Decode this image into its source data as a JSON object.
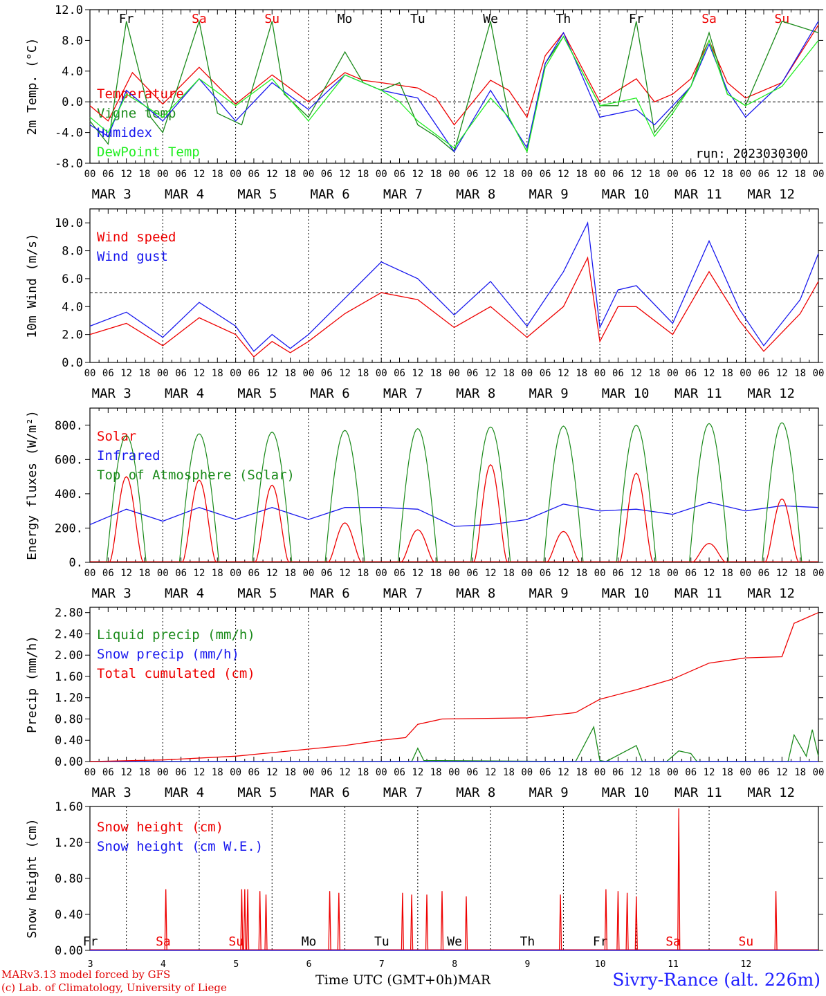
{
  "footer": {
    "model_line": "MARv3.13 model forced by GFS",
    "credit_line": "(c) Lab. of Climatology, University of Liege",
    "x_axis_title": "Time UTC (GMT+0h)",
    "month": "MAR",
    "station": "Sivry-Rance (alt. 226m)"
  },
  "colors": {
    "red": "#ee0000",
    "blue": "#1818ee",
    "green": "#1a8a1a",
    "lightgreen": "#22ee22",
    "black": "#000000"
  },
  "chart_data": [
    {
      "type": "line",
      "ylabel": "2m Temp. (°C)",
      "ylim": [
        -8,
        12
      ],
      "yticks": [
        "-8.0",
        "-4.0",
        "0.0",
        "4.0",
        "8.0",
        "12.0"
      ],
      "reference_line": 0,
      "day_labels": [
        "Fr",
        "Sa",
        "Su",
        "Mo",
        "Tu",
        "We",
        "Th",
        "Fr",
        "Sa",
        "Su"
      ],
      "day_labels_weekend": [
        false,
        true,
        true,
        false,
        false,
        false,
        false,
        false,
        true,
        true
      ],
      "date_labels": [
        "MAR 3",
        "MAR 4",
        "MAR 5",
        "MAR 6",
        "MAR 7",
        "MAR 8",
        "MAR 9",
        "MAR 10",
        "MAR 11",
        "MAR 12"
      ],
      "hour_ticks": [
        "00",
        "06",
        "12",
        "18"
      ],
      "annotation": "run: 2023030300",
      "x_unit": "hours since 2023-03-03 00 UTC",
      "series": [
        {
          "name": "Temperature",
          "color": "red",
          "x": [
            0,
            6,
            14,
            24,
            36,
            48,
            60,
            72,
            84,
            90,
            96,
            108,
            114,
            120,
            132,
            138,
            144,
            150,
            156,
            168,
            180,
            186,
            192,
            198,
            204,
            210,
            216,
            228,
            240
          ],
          "y": [
            -0.5,
            -2.5,
            3.8,
            -0.3,
            4.5,
            -0.3,
            3.5,
            0.0,
            3.8,
            2.8,
            2.5,
            1.8,
            0.5,
            -3.0,
            2.8,
            1.5,
            -2.0,
            6.0,
            9.0,
            0.0,
            3.0,
            0.0,
            1.0,
            3.0,
            8.0,
            2.5,
            0.5,
            2.5,
            10.0
          ]
        },
        {
          "name": "Vigne temp",
          "color": "green",
          "x": [
            0,
            6,
            12,
            20,
            24,
            36,
            42,
            50,
            60,
            64,
            72,
            84,
            90,
            96,
            102,
            108,
            114,
            120,
            132,
            138,
            144,
            150,
            156,
            168,
            174,
            180,
            186,
            192,
            198,
            204,
            210,
            216,
            228,
            240
          ],
          "y": [
            -2.5,
            -5.5,
            10.5,
            -2.0,
            -4.0,
            10.5,
            -1.5,
            -3.0,
            10.5,
            1.0,
            -2.0,
            6.5,
            2.5,
            1.5,
            2.5,
            -3.0,
            -4.5,
            -6.5,
            10.5,
            -2.0,
            -6.5,
            5.0,
            8.5,
            -0.5,
            -0.5,
            10.5,
            -4.0,
            -1.0,
            2.0,
            9.0,
            1.0,
            -0.5,
            10.5,
            9.0
          ]
        },
        {
          "name": "Humidex",
          "color": "blue",
          "x": [
            0,
            6,
            12,
            24,
            36,
            48,
            60,
            72,
            84,
            96,
            108,
            120,
            132,
            144,
            150,
            156,
            168,
            180,
            186,
            192,
            198,
            204,
            210,
            216,
            228,
            240
          ],
          "y": [
            -3.0,
            -4.5,
            1.5,
            -2.5,
            3.0,
            -2.5,
            2.5,
            -1.0,
            3.5,
            1.5,
            0.5,
            -6.5,
            1.5,
            -6.0,
            5.0,
            9.0,
            -2.0,
            -1.0,
            -3.0,
            -0.5,
            2.0,
            7.5,
            1.5,
            -2.0,
            2.5,
            10.5
          ]
        },
        {
          "name": "DewPoint Temp",
          "color": "lightgreen",
          "x": [
            0,
            6,
            12,
            24,
            36,
            48,
            60,
            72,
            84,
            96,
            102,
            108,
            120,
            132,
            138,
            144,
            150,
            156,
            168,
            180,
            186,
            192,
            198,
            204,
            210,
            216,
            228,
            240
          ],
          "y": [
            -2.0,
            -4.0,
            1.0,
            -2.0,
            3.0,
            -0.5,
            3.0,
            -2.5,
            3.5,
            1.5,
            0.0,
            -2.5,
            -6.0,
            0.5,
            -2.0,
            -6.5,
            4.5,
            8.5,
            -0.5,
            0.5,
            -4.5,
            -1.5,
            2.0,
            8.0,
            1.0,
            -0.5,
            2.0,
            8.0
          ]
        }
      ]
    },
    {
      "type": "line",
      "ylabel": "10m Wind (m/s)",
      "ylim": [
        0,
        11
      ],
      "yticks": [
        "0.0",
        "2.0",
        "4.0",
        "6.0",
        "8.0",
        "10.0"
      ],
      "reference_line": 5,
      "date_labels": [
        "MAR 3",
        "MAR 4",
        "MAR 5",
        "MAR 6",
        "MAR 7",
        "MAR 8",
        "MAR 9",
        "MAR 10",
        "MAR 11",
        "MAR 12"
      ],
      "hour_ticks": [
        "00",
        "06",
        "12",
        "18"
      ],
      "series": [
        {
          "name": "Wind speed",
          "color": "red",
          "x": [
            0,
            12,
            24,
            36,
            48,
            54,
            60,
            66,
            72,
            84,
            96,
            108,
            120,
            132,
            144,
            156,
            164,
            168,
            174,
            180,
            192,
            204,
            214,
            222,
            234,
            240
          ],
          "y": [
            2.0,
            2.8,
            1.2,
            3.2,
            2.0,
            0.4,
            1.5,
            0.7,
            1.5,
            3.5,
            5.0,
            4.5,
            2.5,
            4.0,
            1.8,
            4.0,
            7.5,
            1.5,
            4.0,
            4.0,
            2.0,
            6.5,
            3.0,
            0.8,
            3.5,
            5.8
          ]
        },
        {
          "name": "Wind gust",
          "color": "blue",
          "x": [
            0,
            12,
            24,
            36,
            48,
            54,
            60,
            66,
            72,
            84,
            96,
            108,
            120,
            132,
            144,
            156,
            164,
            168,
            174,
            180,
            192,
            204,
            214,
            222,
            234,
            240
          ],
          "y": [
            2.6,
            3.6,
            1.8,
            4.3,
            2.6,
            0.8,
            2.0,
            1.0,
            2.0,
            4.6,
            7.2,
            6.0,
            3.4,
            5.8,
            2.6,
            6.5,
            10.0,
            2.5,
            5.2,
            5.5,
            2.8,
            8.7,
            3.8,
            1.2,
            4.5,
            7.8
          ]
        }
      ]
    },
    {
      "type": "line",
      "ylabel": "Energy fluxes (W/m²)",
      "ylim": [
        0,
        900
      ],
      "yticks": [
        "0.",
        "200.",
        "400.",
        "600.",
        "800."
      ],
      "date_labels": [
        "MAR 3",
        "MAR 4",
        "MAR 5",
        "MAR 6",
        "MAR 7",
        "MAR 8",
        "MAR 9",
        "MAR 10",
        "MAR 11",
        "MAR 12"
      ],
      "hour_ticks": [
        "00",
        "06",
        "12",
        "18"
      ],
      "toa_solar_peaks": [
        740,
        750,
        760,
        770,
        780,
        790,
        795,
        800,
        810,
        815
      ],
      "solar_peaks": [
        500,
        480,
        450,
        230,
        190,
        570,
        180,
        520,
        110,
        370
      ],
      "series": [
        {
          "name": "Solar",
          "color": "red"
        },
        {
          "name": "Infrared",
          "color": "blue",
          "x": [
            0,
            12,
            24,
            36,
            48,
            60,
            72,
            84,
            96,
            108,
            120,
            132,
            144,
            156,
            168,
            180,
            192,
            204,
            216,
            228,
            240
          ],
          "y": [
            220,
            310,
            240,
            320,
            250,
            320,
            250,
            320,
            320,
            310,
            210,
            220,
            250,
            340,
            300,
            310,
            280,
            350,
            300,
            330,
            320
          ]
        },
        {
          "name": "Top of Atmosphere (Solar)",
          "color": "green"
        }
      ]
    },
    {
      "type": "line",
      "ylabel": "Precip (mm/h)",
      "ylim": [
        0,
        2.9
      ],
      "yticks": [
        "0.00",
        "0.40",
        "0.80",
        "1.20",
        "1.60",
        "2.00",
        "2.40",
        "2.80"
      ],
      "date_labels": [
        "MAR 3",
        "MAR 4",
        "MAR 5",
        "MAR 6",
        "MAR 7",
        "MAR 8",
        "MAR 9",
        "MAR 10",
        "MAR 11",
        "MAR 12"
      ],
      "hour_ticks": [
        "00",
        "06",
        "12",
        "18"
      ],
      "series": [
        {
          "name": "Liquid precip (mm/h)",
          "color": "green",
          "x": [
            0,
            106,
            108,
            110,
            160,
            166,
            168,
            170,
            180,
            182,
            190,
            194,
            198,
            200,
            230,
            232,
            236,
            238,
            240
          ],
          "y": [
            0,
            0,
            0.25,
            0.02,
            0,
            0.65,
            0.02,
            0.0,
            0.3,
            0.0,
            0.0,
            0.2,
            0.15,
            0.0,
            0.0,
            0.5,
            0.1,
            0.6,
            0.1
          ]
        },
        {
          "name": "Snow precip (mm/h)",
          "color": "blue",
          "x": [
            0,
            240
          ],
          "y": [
            0,
            0
          ]
        },
        {
          "name": "Total cumulated (cm)",
          "color": "red",
          "x": [
            0,
            24,
            48,
            66,
            84,
            96,
            104,
            108,
            116,
            144,
            160,
            168,
            180,
            192,
            204,
            216,
            228,
            232,
            240
          ],
          "y": [
            0.0,
            0.03,
            0.1,
            0.2,
            0.3,
            0.4,
            0.45,
            0.7,
            0.8,
            0.82,
            0.92,
            1.17,
            1.35,
            1.55,
            1.85,
            1.95,
            1.97,
            2.6,
            2.8
          ]
        }
      ]
    },
    {
      "type": "line",
      "ylabel": "Snow height (cm)",
      "ylim": [
        0,
        1.6
      ],
      "yticks": [
        "0.00",
        "0.40",
        "0.80",
        "1.20",
        "1.60"
      ],
      "day_labels": [
        "Fr",
        "Sa",
        "Su",
        "Mo",
        "Tu",
        "We",
        "Th",
        "Fr",
        "Sa",
        "Su"
      ],
      "day_labels_weekend": [
        false,
        true,
        true,
        false,
        false,
        false,
        false,
        false,
        true,
        true
      ],
      "date_numbers": [
        "3",
        "4",
        "5",
        "6",
        "7",
        "8",
        "9",
        "10",
        "11",
        "12"
      ],
      "series": [
        {
          "name": "Snow height (cm)",
          "color": "red",
          "spikes": [
            [
              25,
              0.68
            ],
            [
              50,
              0.68
            ],
            [
              51,
              0.68
            ],
            [
              52,
              0.68
            ],
            [
              56,
              0.66
            ],
            [
              58,
              0.62
            ],
            [
              79,
              0.66
            ],
            [
              82,
              0.64
            ],
            [
              103,
              0.64
            ],
            [
              106,
              0.62
            ],
            [
              111,
              0.62
            ],
            [
              116,
              0.66
            ],
            [
              124,
              0.6
            ],
            [
              155,
              0.62
            ],
            [
              170,
              0.68
            ],
            [
              174,
              0.66
            ],
            [
              177,
              0.64
            ],
            [
              180,
              0.6
            ],
            [
              194,
              1.58
            ],
            [
              226,
              0.66
            ]
          ]
        },
        {
          "name": "Snow height (cm W.E.)",
          "color": "blue",
          "x": [
            0,
            240
          ],
          "y": [
            0,
            0
          ]
        }
      ]
    }
  ]
}
